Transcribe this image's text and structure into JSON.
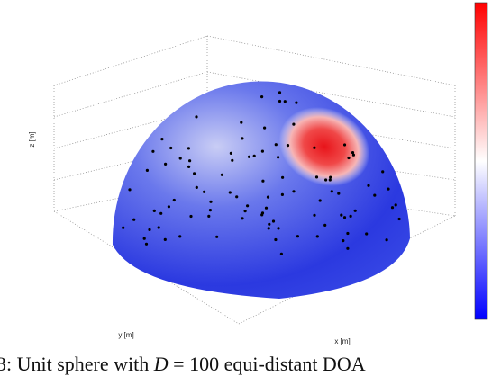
{
  "figure": {
    "axis_labels": {
      "x": "x [m]",
      "y": "y [m]",
      "z": "z [m]"
    },
    "caption": {
      "prefix": "3: Unit sphere with",
      "symbol": "D",
      "rest": "= 100 equi-distant DOA"
    }
  }
}
